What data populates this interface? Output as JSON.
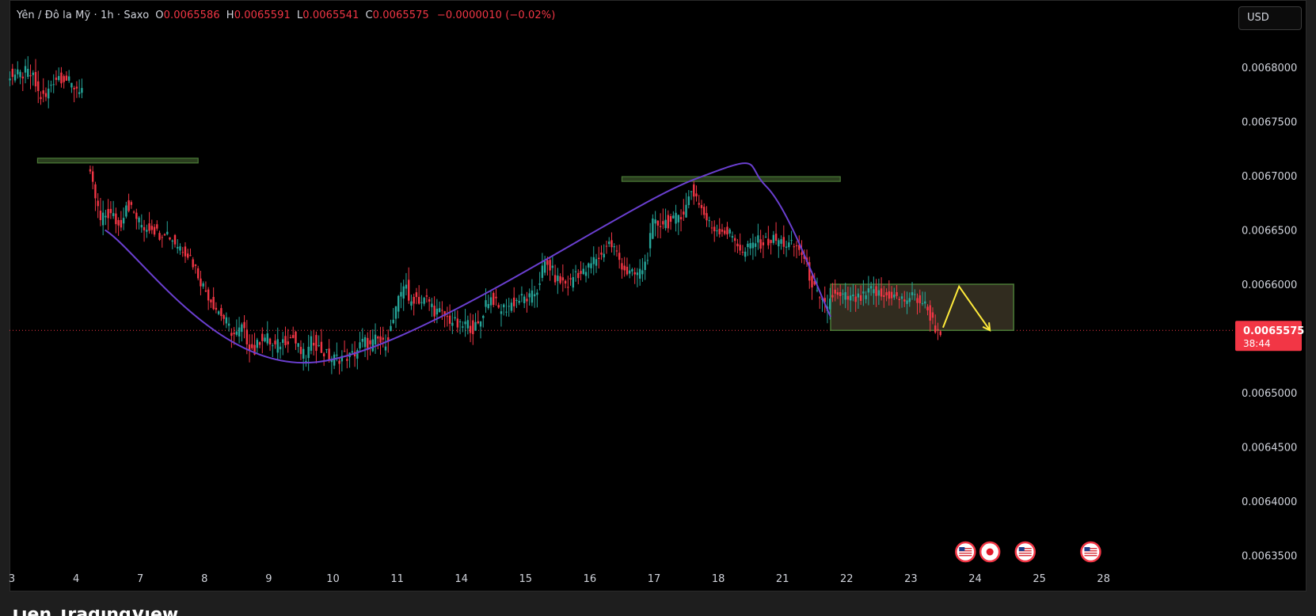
{
  "header": {
    "symbol": "Yên / Đô la Mỹ · 1h · Saxo",
    "o_label": "O",
    "o": "0.0065586",
    "h_label": "H",
    "h": "0.0065591",
    "l_label": "L",
    "l": "0.0065541",
    "c_label": "C",
    "c": "0.0065575",
    "change": "−0.0000010 (−0.02%)"
  },
  "currency": "USD",
  "price_badge": {
    "price": "0.0065575",
    "countdown": "38:44"
  },
  "colors": {
    "up": "#26a69a",
    "down": "#f23645",
    "curve": "#6a3fd0",
    "zone_border": "#4a7a36",
    "zone_fill": "#3a3424",
    "arrow": "#ffeb3b",
    "price_line": "#f23645"
  },
  "brand_partial": "Tiền TradingView",
  "chart_data": {
    "type": "candlestick",
    "ylim": [
      0.006335,
      0.00685
    ],
    "y_ticks": [
      "0.0068000",
      "0.0067500",
      "0.0067000",
      "0.0066500",
      "0.0066000",
      "0.0065500",
      "0.0065000",
      "0.0064500",
      "0.0064000",
      "0.0063500"
    ],
    "y_tick_values": [
      0.0068,
      0.00675,
      0.0067,
      0.00665,
      0.0066,
      0.00655,
      0.0065,
      0.00645,
      0.0064,
      0.00635
    ],
    "x_labels": [
      "3",
      "4",
      "7",
      "8",
      "9",
      "10",
      "11",
      "14",
      "15",
      "16",
      "17",
      "18",
      "21",
      "22",
      "23",
      "24",
      "25",
      "28"
    ],
    "x_label_slots": [
      0,
      1,
      2,
      3,
      4,
      5,
      6,
      7,
      8,
      9,
      10,
      11,
      12,
      13,
      14,
      15,
      16,
      17
    ],
    "last_price": 0.0065575,
    "price_path": [
      [
        -0.05,
        0.006794
      ],
      [
        0.15,
        0.006792
      ],
      [
        0.25,
        0.006796
      ],
      [
        0.35,
        0.00679
      ],
      [
        0.45,
        0.006773
      ],
      [
        0.55,
        0.006772
      ],
      [
        0.65,
        0.006788
      ],
      [
        0.75,
        0.006792
      ],
      [
        0.85,
        0.00679
      ],
      [
        0.95,
        0.006783
      ],
      [
        1.1,
        0.00678
      ],
      [
        1.2,
        0.006707
      ],
      [
        1.3,
        0.006685
      ],
      [
        1.4,
        0.006658
      ],
      [
        1.5,
        0.006665
      ],
      [
        1.6,
        0.006662
      ],
      [
        1.7,
        0.006652
      ],
      [
        1.8,
        0.006675
      ],
      [
        1.9,
        0.006668
      ],
      [
        2.0,
        0.006657
      ],
      [
        2.1,
        0.006652
      ],
      [
        2.2,
        0.006654
      ],
      [
        2.3,
        0.006646
      ],
      [
        2.4,
        0.00665
      ],
      [
        2.5,
        0.006643
      ],
      [
        2.6,
        0.006636
      ],
      [
        2.7,
        0.006633
      ],
      [
        2.8,
        0.006625
      ],
      [
        2.9,
        0.006612
      ],
      [
        3.0,
        0.006598
      ],
      [
        3.1,
        0.006588
      ],
      [
        3.2,
        0.006578
      ],
      [
        3.3,
        0.006571
      ],
      [
        3.4,
        0.00656
      ],
      [
        3.5,
        0.006552
      ],
      [
        3.6,
        0.00656
      ],
      [
        3.7,
        0.006546
      ],
      [
        3.8,
        0.006538
      ],
      [
        3.9,
        0.006552
      ],
      [
        4.0,
        0.00655
      ],
      [
        4.1,
        0.006541
      ],
      [
        4.2,
        0.006546
      ],
      [
        4.3,
        0.00655
      ],
      [
        4.4,
        0.006551
      ],
      [
        4.5,
        0.006538
      ],
      [
        4.6,
        0.006532
      ],
      [
        4.7,
        0.00655
      ],
      [
        4.8,
        0.006541
      ],
      [
        4.9,
        0.006536
      ],
      [
        5.0,
        0.006531
      ],
      [
        5.1,
        0.006532
      ],
      [
        5.2,
        0.006534
      ],
      [
        5.3,
        0.006533
      ],
      [
        5.4,
        0.00654
      ],
      [
        5.5,
        0.006548
      ],
      [
        5.6,
        0.006542
      ],
      [
        5.7,
        0.00655
      ],
      [
        5.8,
        0.006544
      ],
      [
        5.9,
        0.006555
      ],
      [
        6.0,
        0.006575
      ],
      [
        6.1,
        0.006597
      ],
      [
        6.15,
        0.006607
      ],
      [
        6.2,
        0.00658
      ],
      [
        6.3,
        0.006589
      ],
      [
        6.4,
        0.006584
      ],
      [
        6.5,
        0.006586
      ],
      [
        6.6,
        0.006576
      ],
      [
        6.7,
        0.006573
      ],
      [
        6.8,
        0.006569
      ],
      [
        6.9,
        0.006565
      ],
      [
        7.0,
        0.00656
      ],
      [
        7.1,
        0.006564
      ],
      [
        7.2,
        0.006559
      ],
      [
        7.3,
        0.006562
      ],
      [
        7.4,
        0.006584
      ],
      [
        7.5,
        0.006588
      ],
      [
        7.6,
        0.006577
      ],
      [
        7.7,
        0.006578
      ],
      [
        7.8,
        0.006582
      ],
      [
        7.9,
        0.006586
      ],
      [
        8.0,
        0.006587
      ],
      [
        8.1,
        0.006587
      ],
      [
        8.2,
        0.006595
      ],
      [
        8.3,
        0.006618
      ],
      [
        8.4,
        0.006616
      ],
      [
        8.5,
        0.006604
      ],
      [
        8.6,
        0.006602
      ],
      [
        8.7,
        0.006599
      ],
      [
        8.8,
        0.006612
      ],
      [
        8.9,
        0.006609
      ],
      [
        9.0,
        0.006615
      ],
      [
        9.1,
        0.006624
      ],
      [
        9.2,
        0.006626
      ],
      [
        9.3,
        0.006639
      ],
      [
        9.4,
        0.006633
      ],
      [
        9.5,
        0.00662
      ],
      [
        9.6,
        0.006611
      ],
      [
        9.7,
        0.006608
      ],
      [
        9.8,
        0.006611
      ],
      [
        9.9,
        0.006621
      ],
      [
        10.0,
        0.006655
      ],
      [
        10.1,
        0.006656
      ],
      [
        10.2,
        0.006658
      ],
      [
        10.3,
        0.006656
      ],
      [
        10.4,
        0.006664
      ],
      [
        10.5,
        0.006668
      ],
      [
        10.6,
        0.006687
      ],
      [
        10.7,
        0.006679
      ],
      [
        10.8,
        0.006664
      ],
      [
        10.9,
        0.006653
      ],
      [
        11.0,
        0.006651
      ],
      [
        11.1,
        0.00665
      ],
      [
        11.2,
        0.006646
      ],
      [
        11.3,
        0.006641
      ],
      [
        11.4,
        0.006627
      ],
      [
        11.5,
        0.006634
      ],
      [
        11.6,
        0.00664
      ],
      [
        11.7,
        0.006638
      ],
      [
        11.8,
        0.00664
      ],
      [
        11.9,
        0.006641
      ],
      [
        12.0,
        0.006639
      ],
      [
        12.1,
        0.006636
      ],
      [
        12.2,
        0.006635
      ],
      [
        12.3,
        0.006632
      ],
      [
        12.4,
        0.006615
      ],
      [
        12.5,
        0.006598
      ],
      [
        12.6,
        0.006584
      ],
      [
        12.7,
        0.006579
      ],
      [
        12.8,
        0.00659
      ],
      [
        12.9,
        0.006587
      ],
      [
        13.0,
        0.006588
      ],
      [
        13.1,
        0.006586
      ],
      [
        13.2,
        0.006586
      ],
      [
        13.3,
        0.006588
      ],
      [
        13.4,
        0.006594
      ],
      [
        13.5,
        0.006591
      ],
      [
        13.6,
        0.006588
      ],
      [
        13.7,
        0.006591
      ],
      [
        13.8,
        0.006587
      ],
      [
        13.9,
        0.006585
      ],
      [
        14.0,
        0.006588
      ],
      [
        14.1,
        0.006588
      ],
      [
        14.15,
        0.006584
      ],
      [
        14.2,
        0.006584
      ],
      [
        14.3,
        0.006574
      ],
      [
        14.4,
        0.00656
      ],
      [
        14.45,
        0.0065575
      ]
    ],
    "curve": [
      [
        1.45,
        0.00665
      ],
      [
        4.7,
        0.006528
      ],
      [
        10.6,
        0.006696
      ],
      [
        11.75,
        0.00669
      ],
      [
        12.75,
        0.00657
      ]
    ],
    "resistance_lines": [
      {
        "x1": 0.4,
        "x2": 2.9,
        "y": 0.006714
      },
      {
        "x1": 9.5,
        "x2": 12.9,
        "y": 0.006697
      }
    ],
    "range_zone": {
      "x1": 12.75,
      "x2": 15.6,
      "y_top": 0.0066,
      "y_bottom": 0.0065575
    },
    "projection": [
      [
        14.5,
        0.00656
      ],
      [
        14.75,
        0.006598
      ],
      [
        15.23,
        0.0065575
      ]
    ]
  }
}
